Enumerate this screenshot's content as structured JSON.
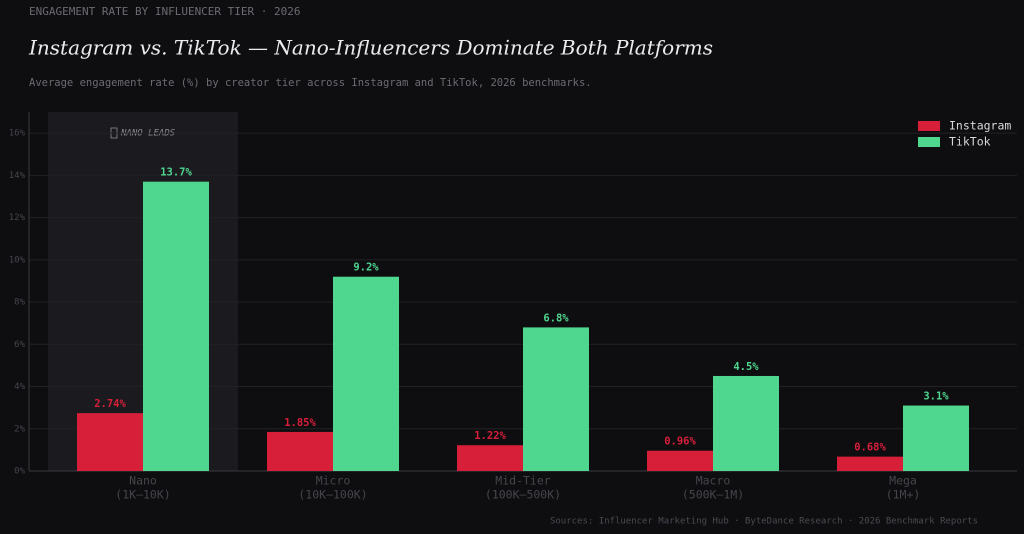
{
  "chart_data": {
    "type": "bar",
    "eyebrow": "ENGAGEMENT RATE BY INFLUENCER TIER  ·  2026",
    "title": "Instagram vs. TikTok — Nano-Influencers Dominate Both Platforms",
    "subtitle": "Average engagement rate (%) by creator tier across Instagram and TikTok, 2026 benchmarks.",
    "annotation": "NANO LEADS",
    "source": "Sources: Influencer Marketing Hub · ByteDance Research · 2026 Benchmark Reports",
    "categories": [
      "Nano",
      "Micro",
      "Mid-Tier",
      "Macro",
      "Mega"
    ],
    "category_ranges": [
      "(1K–10K)",
      "(10K–100K)",
      "(100K–500K)",
      "(500K–1M)",
      "(1M+)"
    ],
    "series": [
      {
        "name": "Instagram",
        "color": "#d81f3a",
        "values": [
          2.74,
          1.85,
          1.22,
          0.96,
          0.68
        ],
        "value_labels": [
          "2.74%",
          "1.85%",
          "1.22%",
          "0.96%",
          "0.68%"
        ]
      },
      {
        "name": "TikTok",
        "color": "#4fd68f",
        "values": [
          13.7,
          9.2,
          6.8,
          4.5,
          3.1
        ],
        "value_labels": [
          "13.7%",
          "9.2%",
          "6.8%",
          "4.5%",
          "3.1%"
        ]
      }
    ],
    "ylim": [
      0,
      17
    ],
    "yticks": [
      {
        "value": 0,
        "label": "0%"
      },
      {
        "value": 2,
        "label": "2%"
      },
      {
        "value": 4,
        "label": "4%"
      },
      {
        "value": 6,
        "label": "6%"
      },
      {
        "value": 8,
        "label": "8%"
      },
      {
        "value": 10,
        "label": "10%"
      },
      {
        "value": 12,
        "label": "12%"
      },
      {
        "value": 14,
        "label": "14%"
      },
      {
        "value": 16,
        "label": "16%"
      }
    ],
    "grid": true,
    "legend": "top-right"
  }
}
